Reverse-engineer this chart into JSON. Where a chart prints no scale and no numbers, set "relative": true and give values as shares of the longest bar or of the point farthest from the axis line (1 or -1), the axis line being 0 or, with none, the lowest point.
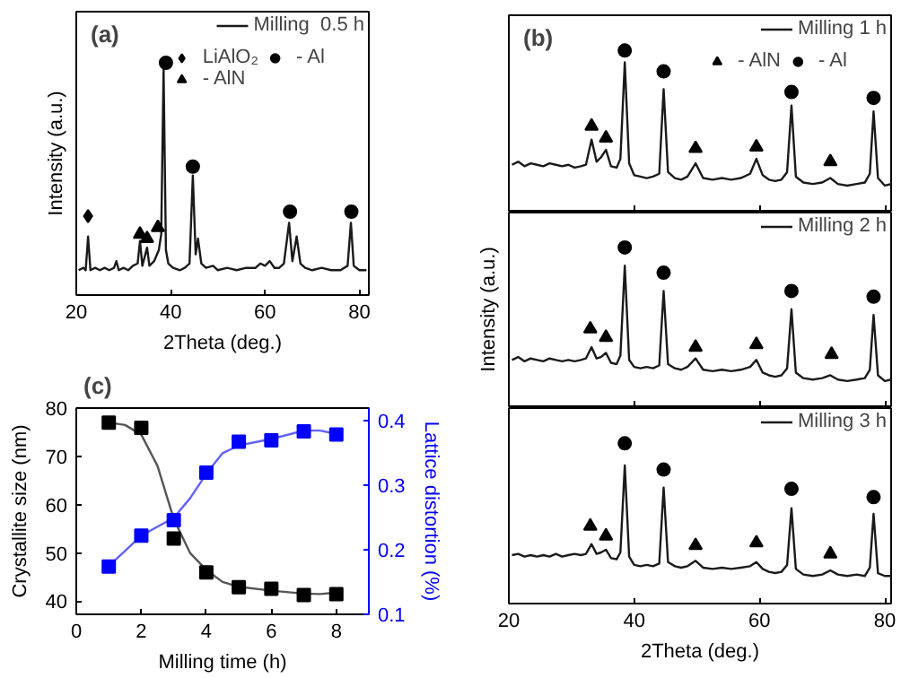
{
  "chart_data": [
    {
      "type": "line",
      "relative": true,
      "annotations": [
        "(a)"
      ],
      "xlabel": "2Theta (deg.)",
      "ylabel": "Intensity (a.u.)",
      "xlim": [
        20,
        82
      ],
      "xticks": [
        20,
        40,
        60,
        80
      ],
      "tick_labels": "x",
      "grid": false,
      "legend": "top right",
      "x": [
        20.5,
        21.5,
        22,
        22.5,
        23,
        24,
        25,
        26,
        27,
        28,
        28.5,
        29,
        30,
        31,
        32,
        33,
        33.5,
        34,
        35,
        35.5,
        36.5,
        37.5,
        38,
        38.5,
        39,
        39.5,
        40.5,
        42,
        43,
        44,
        44.7,
        45.3,
        45.8,
        46.5,
        47.5,
        49,
        50,
        52,
        54,
        56,
        58,
        59,
        60,
        61,
        62,
        63,
        64,
        65.1,
        65.8,
        66.7,
        67.5,
        68.5,
        70,
        72,
        74,
        76,
        77.5,
        78.2,
        78.8,
        80,
        81.5
      ],
      "series": [
        {
          "name": "Milling  0.5 h",
          "color": "#1a1a1a",
          "values": [
            0.107,
            0.117,
            0.107,
            0.252,
            0.107,
            0.117,
            0.107,
            0.117,
            0.107,
            0.117,
            0.146,
            0.107,
            0.117,
            0.107,
            0.126,
            0.136,
            0.233,
            0.126,
            0.204,
            0.126,
            0.146,
            0.194,
            0.262,
            0.971,
            0.194,
            0.136,
            0.117,
            0.107,
            0.117,
            0.136,
            0.515,
            0.175,
            0.243,
            0.136,
            0.117,
            0.126,
            0.107,
            0.117,
            0.107,
            0.117,
            0.117,
            0.136,
            0.126,
            0.146,
            0.117,
            0.117,
            0.136,
            0.311,
            0.146,
            0.252,
            0.136,
            0.117,
            0.107,
            0.117,
            0.107,
            0.107,
            0.126,
            0.311,
            0.126,
            0.107,
            0.107
          ]
        },
        {
          "name": "LiAlO₂",
          "type": "scatter",
          "marker": "diamond",
          "color": "#000000",
          "x": [
            22.5
          ],
          "values": [
            0.34
          ]
        },
        {
          "name": "- AlN",
          "type": "scatter",
          "marker": "triangle",
          "color": "#000000",
          "x": [
            33.5,
            35,
            37.3
          ],
          "values": [
            0.262,
            0.243,
            0.291
          ]
        },
        {
          "name": "- Al",
          "type": "scatter",
          "marker": "circle",
          "color": "#000000",
          "x": [
            39,
            44.7,
            65.3,
            78.3
          ],
          "values": [
            1,
            0.553,
            0.359,
            0.359
          ]
        }
      ]
    },
    {
      "type": "line",
      "relative": true,
      "annotations": [
        "(b)"
      ],
      "xlim": [
        20,
        81
      ],
      "xticks": [
        20,
        40,
        60,
        80
      ],
      "tick_labels": false,
      "grid": false,
      "legend": "top right",
      "x": [
        20.5,
        21.5,
        22.5,
        23.5,
        24.5,
        25.5,
        26.5,
        27.5,
        28.5,
        29.5,
        30.5,
        31.5,
        32.3,
        33.2,
        34,
        34.7,
        35.5,
        36.3,
        37.2,
        37.8,
        38.5,
        39.2,
        40,
        41,
        42,
        43,
        44,
        44.7,
        45.4,
        46.5,
        47.5,
        48.5,
        49.8,
        51,
        52.5,
        54,
        55.5,
        57,
        58.5,
        59.5,
        60.5,
        61.5,
        62.5,
        63.5,
        64.4,
        65.1,
        65.8,
        67,
        68.5,
        70,
        71.3,
        72.5,
        74,
        75.5,
        76.8,
        77.6,
        78.2,
        78.9,
        80,
        81
      ],
      "series": [
        {
          "name": "Milling 1 h",
          "color": "#1a1a1a",
          "values": [
            0.287,
            0.306,
            0.278,
            0.296,
            0.287,
            0.278,
            0.296,
            0.287,
            0.278,
            0.287,
            0.269,
            0.278,
            0.287,
            0.444,
            0.306,
            0.333,
            0.38,
            0.278,
            0.269,
            0.324,
            0.926,
            0.296,
            0.222,
            0.213,
            0.204,
            0.213,
            0.231,
            0.759,
            0.241,
            0.204,
            0.194,
            0.213,
            0.296,
            0.204,
            0.194,
            0.204,
            0.194,
            0.204,
            0.231,
            0.324,
            0.222,
            0.194,
            0.185,
            0.194,
            0.241,
            0.657,
            0.213,
            0.176,
            0.167,
            0.176,
            0.204,
            0.167,
            0.157,
            0.167,
            0.176,
            0.231,
            0.62,
            0.204,
            0.157,
            0.167
          ]
        },
        {
          "name": "- AlN",
          "type": "scatter",
          "marker": "triangle",
          "color": "#000000",
          "x": [
            33.2,
            35.5,
            49.8,
            59.5,
            71.3
          ],
          "values": [
            0.528,
            0.454,
            0.389,
            0.398,
            0.306
          ]
        },
        {
          "name": "- Al",
          "type": "scatter",
          "marker": "circle",
          "color": "#000000",
          "x": [
            38.5,
            44.7,
            65.1,
            78.2
          ],
          "values": [
            1,
            0.87,
            0.741,
            0.704
          ]
        }
      ]
    },
    {
      "type": "line",
      "relative": true,
      "ylabel": "Intensity (a.u.)",
      "xlim": [
        20,
        81
      ],
      "xticks": [
        20,
        40,
        60,
        80
      ],
      "tick_labels": false,
      "grid": false,
      "legend": "top right",
      "x": [
        20.5,
        21.5,
        22.5,
        23.5,
        24.5,
        25.5,
        26.5,
        27.5,
        28.5,
        29.5,
        30.5,
        31.5,
        32.3,
        33.2,
        34,
        34.7,
        35.5,
        36.3,
        37.2,
        37.8,
        38.5,
        39.2,
        40,
        41,
        42,
        43,
        44,
        44.7,
        45.4,
        46.5,
        47.5,
        48.5,
        49.8,
        51,
        52.5,
        54,
        55.5,
        57,
        58.5,
        59.5,
        60.5,
        61.5,
        62.5,
        63.5,
        64.4,
        65.1,
        65.8,
        67,
        68.5,
        70,
        71.3,
        72.5,
        74,
        75.5,
        76.8,
        77.6,
        78.2,
        78.9,
        80,
        81
      ],
      "series": [
        {
          "name": "Milling 2 h",
          "color": "#1a1a1a",
          "values": [
            0.292,
            0.31,
            0.283,
            0.301,
            0.292,
            0.283,
            0.301,
            0.292,
            0.283,
            0.292,
            0.283,
            0.292,
            0.301,
            0.372,
            0.301,
            0.31,
            0.336,
            0.274,
            0.265,
            0.319,
            0.885,
            0.292,
            0.248,
            0.239,
            0.248,
            0.239,
            0.257,
            0.726,
            0.265,
            0.239,
            0.23,
            0.248,
            0.301,
            0.23,
            0.221,
            0.23,
            0.221,
            0.23,
            0.248,
            0.292,
            0.212,
            0.195,
            0.186,
            0.195,
            0.239,
            0.611,
            0.212,
            0.177,
            0.168,
            0.177,
            0.195,
            0.168,
            0.159,
            0.168,
            0.177,
            0.23,
            0.575,
            0.195,
            0.159,
            0.168
          ]
        },
        {
          "type": "scatter",
          "marker": "triangle",
          "color": "#000000",
          "x": [
            33,
            35.5,
            49.8,
            59.5,
            71.5
          ],
          "values": [
            0.487,
            0.434,
            0.372,
            0.389,
            0.327
          ]
        },
        {
          "type": "scatter",
          "marker": "circle",
          "color": "#000000",
          "x": [
            38.5,
            44.7,
            65.1,
            78.2
          ],
          "values": [
            1,
            0.841,
            0.726,
            0.69
          ]
        }
      ]
    },
    {
      "type": "line",
      "relative": true,
      "xlabel": "2Theta (deg.)",
      "xlim": [
        20,
        81
      ],
      "xticks": [
        20,
        40,
        60,
        80
      ],
      "tick_labels": "x",
      "grid": false,
      "legend": "top right",
      "x": [
        20.5,
        21.5,
        22.5,
        23.5,
        24.5,
        25.5,
        26.5,
        27.5,
        28.5,
        29.5,
        30.5,
        31.5,
        32.3,
        33.2,
        34,
        34.7,
        35.5,
        36.3,
        37.2,
        37.8,
        38.5,
        39.2,
        40,
        41,
        42,
        43,
        44,
        44.7,
        45.4,
        46.5,
        47.5,
        48.5,
        49.8,
        51,
        52.5,
        54,
        55.5,
        57,
        58.5,
        59.5,
        60.5,
        61.5,
        62.5,
        63.5,
        64.4,
        65.1,
        65.8,
        67,
        68.5,
        70,
        71.3,
        72.5,
        74,
        75.5,
        76.8,
        77.6,
        78.2,
        78.9,
        80,
        81
      ],
      "series": [
        {
          "name": "Milling 3 h",
          "color": "#1a1a1a",
          "values": [
            0.302,
            0.31,
            0.293,
            0.302,
            0.293,
            0.302,
            0.293,
            0.31,
            0.293,
            0.302,
            0.31,
            0.302,
            0.31,
            0.371,
            0.31,
            0.319,
            0.336,
            0.284,
            0.276,
            0.319,
            0.862,
            0.293,
            0.241,
            0.233,
            0.241,
            0.233,
            0.25,
            0.724,
            0.259,
            0.233,
            0.224,
            0.233,
            0.267,
            0.224,
            0.216,
            0.224,
            0.216,
            0.224,
            0.233,
            0.259,
            0.216,
            0.198,
            0.19,
            0.198,
            0.241,
            0.595,
            0.216,
            0.181,
            0.172,
            0.181,
            0.207,
            0.181,
            0.172,
            0.181,
            0.172,
            0.224,
            0.56,
            0.19,
            0.172,
            0.172
          ]
        },
        {
          "type": "scatter",
          "marker": "triangle",
          "color": "#000000",
          "x": [
            33,
            35.5,
            49.8,
            59.5,
            71.3
          ],
          "values": [
            0.483,
            0.422,
            0.362,
            0.379,
            0.31
          ]
        },
        {
          "type": "scatter",
          "marker": "circle",
          "color": "#000000",
          "x": [
            38.5,
            44.7,
            65.1,
            78.2
          ],
          "values": [
            1,
            0.836,
            0.716,
            0.664
          ]
        }
      ]
    },
    {
      "type": "scatter",
      "annotations": [
        "(c)"
      ],
      "xlabel": "Milling time (h)",
      "ylabel": "Crystallite size (nm)",
      "y2label": "Lattice distortion (%)",
      "xlim": [
        0,
        9
      ],
      "xticks": [
        0,
        2,
        4,
        6,
        8
      ],
      "ylim": [
        37.3,
        80
      ],
      "yticks": [
        40,
        50,
        60,
        70,
        80
      ],
      "y2lim": [
        0.1,
        0.42
      ],
      "y2ticks": [
        0.1,
        0.2,
        0.3,
        0.4
      ],
      "grid": false,
      "x": [
        1,
        2,
        3,
        4,
        5,
        6,
        7,
        8
      ],
      "series": [
        {
          "type": "line",
          "color": "#555555",
          "x": [
            1,
            1.5,
            2,
            2.5,
            3,
            3.5,
            4,
            4.5,
            5,
            6,
            7,
            7.5,
            8
          ],
          "values": [
            77,
            76.5,
            74.5,
            68,
            57,
            50,
            46.5,
            44,
            43,
            42.2,
            41.6,
            41.5,
            41.8
          ]
        },
        {
          "marker": "square",
          "color": "#000000",
          "values": [
            77,
            75.9,
            53,
            46,
            42.9,
            42.6,
            41.3,
            41.5
          ]
        },
        {
          "type": "line",
          "axis": "y2",
          "color": "#6060ff",
          "x": [
            1,
            2,
            3,
            3.5,
            4,
            4.5,
            5,
            6,
            7,
            7.5,
            8
          ],
          "values": [
            0.175,
            0.222,
            0.25,
            0.28,
            0.318,
            0.35,
            0.362,
            0.372,
            0.385,
            0.385,
            0.38
          ]
        },
        {
          "axis": "y2",
          "marker": "square",
          "color": "#0000ff",
          "values": [
            0.174,
            0.222,
            0.246,
            0.32,
            0.368,
            0.37,
            0.384,
            0.379
          ]
        }
      ]
    }
  ]
}
